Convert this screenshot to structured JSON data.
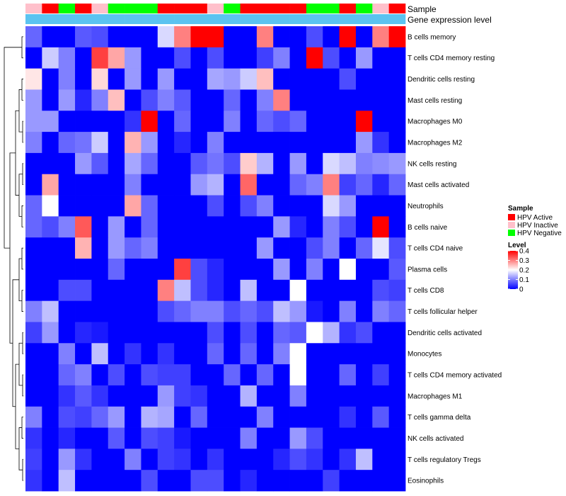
{
  "chart_data": {
    "type": "heatmap",
    "title": "",
    "annotation_tracks": [
      {
        "name": "Sample",
        "categories": [
          "HPV Inactive",
          "HPV Active",
          "HPV Negative",
          "HPV Active",
          "HPV Inactive",
          "HPV Negative",
          "HPV Negative",
          "HPV Negative",
          "HPV Active",
          "HPV Active",
          "HPV Active",
          "HPV Inactive",
          "HPV Negative",
          "HPV Active",
          "HPV Active",
          "HPV Active",
          "HPV Active",
          "HPV Negative",
          "HPV Negative",
          "HPV Active",
          "HPV Negative",
          "HPV Inactive",
          "HPV Active"
        ]
      },
      {
        "name": "Gene expression level",
        "constant": "Gene expression level"
      }
    ],
    "rows": [
      {
        "label": "B cells memory",
        "values": [
          0.08,
          0,
          0,
          0.07,
          0.06,
          0,
          0,
          0,
          0.17,
          0.3,
          0.4,
          0.4,
          0,
          0,
          0.3,
          0,
          0,
          0.06,
          0,
          0.4,
          0,
          0.3,
          0.4
        ]
      },
      {
        "label": "T cells CD4 memory resting",
        "values": [
          0,
          0.16,
          0.1,
          0,
          0.35,
          0.27,
          0.12,
          0,
          0,
          0.06,
          0,
          0.06,
          0,
          0,
          0.05,
          0.1,
          0,
          0.4,
          0.06,
          0,
          0.12,
          0,
          0
        ]
      },
      {
        "label": "Dendritic cells resting",
        "values": [
          0.22,
          0,
          0.1,
          0,
          0.23,
          0,
          0.12,
          0,
          0.12,
          0,
          0,
          0.13,
          0.12,
          0.16,
          0.25,
          0,
          0,
          0,
          0,
          0.06,
          0,
          0,
          0
        ]
      },
      {
        "label": "Mast cells resting",
        "values": [
          0.12,
          0,
          0.12,
          0.03,
          0.1,
          0.25,
          0,
          0.06,
          0.1,
          0.07,
          0,
          0,
          0.08,
          0,
          0.1,
          0.3,
          0,
          0,
          0,
          0,
          0,
          0,
          0
        ]
      },
      {
        "label": "Macrophages M0",
        "values": [
          0.12,
          0.12,
          0,
          0,
          0,
          0,
          0.04,
          0.4,
          0,
          0.08,
          0,
          0,
          0.1,
          0,
          0.08,
          0.06,
          0.08,
          0,
          0,
          0,
          0.4,
          0,
          0
        ]
      },
      {
        "label": "Macrophages M2",
        "values": [
          0.1,
          0,
          0.08,
          0.09,
          0.16,
          0,
          0.26,
          0.12,
          0,
          0.03,
          0,
          0.1,
          0,
          0,
          0,
          0,
          0,
          0,
          0,
          0,
          0.12,
          0.04,
          0
        ]
      },
      {
        "label": "NK cells resting",
        "values": [
          0,
          0,
          0,
          0.12,
          0.07,
          0,
          0.13,
          0.08,
          0,
          0,
          0.07,
          0.09,
          0.06,
          0.24,
          0.14,
          0,
          0.12,
          0,
          0.17,
          0.15,
          0.1,
          0.11,
          0.12
        ]
      },
      {
        "label": "Mast cells activated",
        "values": [
          0,
          0.27,
          0,
          0,
          0,
          0,
          0.1,
          0,
          0,
          0,
          0.12,
          0.14,
          0,
          0.32,
          0,
          0,
          0.08,
          0.1,
          0.3,
          0.05,
          0.08,
          0.03,
          0.08
        ]
      },
      {
        "label": "Neutrophils",
        "values": [
          0.08,
          0.2,
          0,
          0,
          0,
          0,
          0.27,
          0.08,
          0,
          0,
          0,
          0.06,
          0,
          0.06,
          0.1,
          0,
          0,
          0,
          0.17,
          0.12,
          0,
          0,
          0
        ]
      },
      {
        "label": "B cells naive",
        "values": [
          0.08,
          0.06,
          0.1,
          0.33,
          0,
          0.12,
          0,
          0.08,
          0,
          0,
          0,
          0,
          0,
          0,
          0,
          0.12,
          0.03,
          0,
          0.1,
          0.06,
          0,
          0.4,
          0
        ]
      },
      {
        "label": "T cells CD4 naive",
        "values": [
          0,
          0,
          0,
          0.26,
          0,
          0.12,
          0.08,
          0.1,
          0,
          0,
          0,
          0,
          0,
          0,
          0.12,
          0,
          0,
          0.06,
          0.1,
          0,
          0.08,
          0.18,
          0.06
        ]
      },
      {
        "label": "Plasma cells",
        "values": [
          0,
          0,
          0,
          0,
          0,
          0.08,
          0,
          0,
          0,
          0.35,
          0.06,
          0.03,
          0,
          0,
          0,
          0.12,
          0,
          0.1,
          0,
          0.2,
          0,
          0,
          0.07
        ]
      },
      {
        "label": "T cells CD8",
        "values": [
          0,
          0,
          0.06,
          0.06,
          0,
          0,
          0,
          0,
          0.3,
          0.15,
          0.06,
          0.03,
          0,
          0.15,
          0,
          0,
          0.2,
          0,
          0,
          0,
          0,
          0.06,
          0.05
        ]
      },
      {
        "label": "T cells follicular helper",
        "values": [
          0.1,
          0.15,
          0,
          0,
          0,
          0,
          0,
          0,
          0.06,
          0.08,
          0.1,
          0.1,
          0.06,
          0.08,
          0.06,
          0.15,
          0.12,
          0.02,
          0,
          0.1,
          0,
          0.1,
          0.08
        ]
      },
      {
        "label": "Dendritic cells activated",
        "values": [
          0.05,
          0.12,
          0,
          0.03,
          0.02,
          0,
          0,
          0,
          0,
          0,
          0,
          0.06,
          0,
          0.06,
          0,
          0.08,
          0.07,
          0.2,
          0.14,
          0.04,
          0.06,
          0,
          0
        ]
      },
      {
        "label": "Monocytes",
        "values": [
          0,
          0,
          0.1,
          0,
          0.15,
          0,
          0.04,
          0,
          0.04,
          0,
          0,
          0.08,
          0,
          0.08,
          0,
          0.1,
          0.2,
          0,
          0,
          0,
          0,
          0,
          0
        ]
      },
      {
        "label": "T cells CD4 memory activated",
        "values": [
          0,
          0,
          0.08,
          0.1,
          0,
          0.06,
          0,
          0.06,
          0.05,
          0.05,
          0,
          0,
          0.08,
          0,
          0.08,
          0,
          0.2,
          0,
          0,
          0.08,
          0,
          0.05,
          0
        ]
      },
      {
        "label": "Macrophages M1",
        "values": [
          0,
          0,
          0.04,
          0.07,
          0.04,
          0,
          0,
          0,
          0.12,
          0.05,
          0.04,
          0,
          0,
          0.14,
          0,
          0,
          0.1,
          0,
          0,
          0,
          0,
          0,
          0
        ]
      },
      {
        "label": "T cells gamma delta",
        "values": [
          0.1,
          0,
          0.06,
          0.05,
          0.08,
          0.12,
          0,
          0.14,
          0.13,
          0,
          0.08,
          0,
          0,
          0,
          0.1,
          0,
          0,
          0,
          0,
          0.04,
          0,
          0.07,
          0
        ]
      },
      {
        "label": "NK cells activated",
        "values": [
          0.04,
          0,
          0.03,
          0,
          0,
          0.07,
          0,
          0.06,
          0.05,
          0.02,
          0,
          0,
          0,
          0.1,
          0,
          0,
          0.12,
          0.06,
          0,
          0,
          0,
          0,
          0
        ]
      },
      {
        "label": "T cells regulatory  Tregs",
        "values": [
          0.05,
          0,
          0.12,
          0.04,
          0,
          0,
          0.1,
          0,
          0.05,
          0.04,
          0,
          0.04,
          0,
          0,
          0,
          0.03,
          0.06,
          0.04,
          0,
          0.04,
          0.15,
          0,
          0
        ]
      },
      {
        "label": "Eosinophils",
        "values": [
          0.04,
          0,
          0.15,
          0,
          0,
          0,
          0,
          0.06,
          0,
          0,
          0.06,
          0.06,
          0,
          0.03,
          0,
          0,
          0,
          0,
          0.05,
          0,
          0,
          0,
          0
        ]
      }
    ],
    "legend": {
      "sample_title": "Sample",
      "sample_entries": [
        {
          "label": "HPV Active",
          "color": "#ff0000"
        },
        {
          "label": "HPV Inactive",
          "color": "#ffc0cb"
        },
        {
          "label": "HPV Negative",
          "color": "#00ff00"
        }
      ],
      "level_title": "Level",
      "level_ticks": [
        "0.4",
        "0.3",
        "0.2",
        "0.1",
        "0"
      ],
      "level_tick_values": [
        0.4,
        0.3,
        0.2,
        0.1,
        0
      ],
      "scale": {
        "min": 0,
        "mid": 0.2,
        "max": 0.4,
        "low_color": "#0000ff",
        "mid_color": "#ffffff",
        "high_color": "#ff0000"
      }
    },
    "gene_expression_color": "#5bc3f0"
  }
}
